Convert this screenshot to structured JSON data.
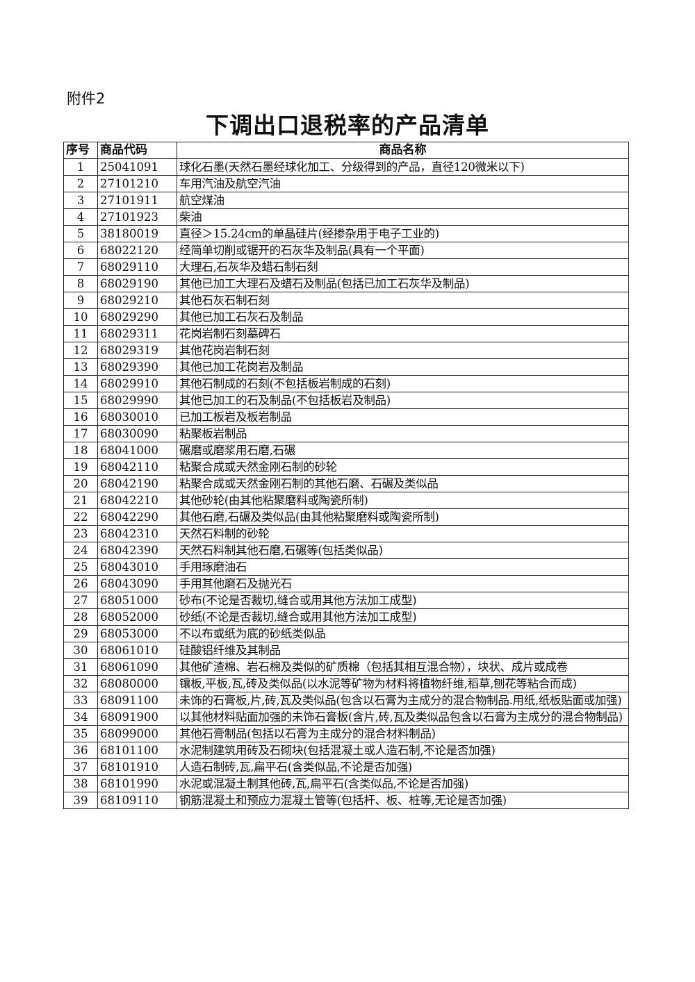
{
  "attachment_label": "附件2",
  "title": "下调出口退税率的产品清单",
  "table": {
    "headers": [
      "序号",
      "商品代码",
      "商品名称"
    ],
    "rows": [
      [
        "1",
        "25041091",
        "球化石墨(天然石墨经球化加工、分级得到的产品，直径120微米以下)"
      ],
      [
        "2",
        "27101210",
        "车用汽油及航空汽油"
      ],
      [
        "3",
        "27101911",
        "航空煤油"
      ],
      [
        "4",
        "27101923",
        "柴油"
      ],
      [
        "5",
        "38180019",
        "直径＞15.24cm的单晶硅片(经掺杂用于电子工业的)"
      ],
      [
        "6",
        "68022120",
        "经简单切削或锯开的石灰华及制品(具有一个平面)"
      ],
      [
        "7",
        "68029110",
        "大理石,石灰华及蜡石制石刻"
      ],
      [
        "8",
        "68029190",
        "其他已加工大理石及蜡石及制品(包括已加工石灰华及制品)"
      ],
      [
        "9",
        "68029210",
        "其他石灰石制石刻"
      ],
      [
        "10",
        "68029290",
        "其他已加工石灰石及制品"
      ],
      [
        "11",
        "68029311",
        "花岗岩制石刻墓碑石"
      ],
      [
        "12",
        "68029319",
        "其他花岗岩制石刻"
      ],
      [
        "13",
        "68029390",
        "其他已加工花岗岩及制品"
      ],
      [
        "14",
        "68029910",
        "其他石制成的石刻(不包括板岩制成的石刻)"
      ],
      [
        "15",
        "68029990",
        "其他已加工的石及制品(不包括板岩及制品)"
      ],
      [
        "16",
        "68030010",
        "已加工板岩及板岩制品"
      ],
      [
        "17",
        "68030090",
        "粘聚板岩制品"
      ],
      [
        "18",
        "68041000",
        "碾磨或磨浆用石磨,石碾"
      ],
      [
        "19",
        "68042110",
        "粘聚合成或天然金刚石制的砂轮"
      ],
      [
        "20",
        "68042190",
        "粘聚合成或天然金刚石制的其他石磨、石碾及类似品"
      ],
      [
        "21",
        "68042210",
        "其他砂轮(由其他粘聚磨料或陶瓷所制)"
      ],
      [
        "22",
        "68042290",
        "其他石磨,石碾及类似品(由其他粘聚磨料或陶瓷所制)"
      ],
      [
        "23",
        "68042310",
        "天然石料制的砂轮"
      ],
      [
        "24",
        "68042390",
        "天然石料制其他石磨,石碾等(包括类似品)"
      ],
      [
        "25",
        "68043010",
        "手用琢磨油石"
      ],
      [
        "26",
        "68043090",
        "手用其他磨石及抛光石"
      ],
      [
        "27",
        "68051000",
        "砂布(不论是否裁切,缝合或用其他方法加工成型)"
      ],
      [
        "28",
        "68052000",
        "砂纸(不论是否裁切,缝合或用其他方法加工成型)"
      ],
      [
        "29",
        "68053000",
        "不以布或纸为底的砂纸类似品"
      ],
      [
        "30",
        "68061010",
        "硅酸铝纤维及其制品"
      ],
      [
        "31",
        "68061090",
        "其他矿渣棉、岩石棉及类似的矿质棉（包括其相互混合物），块状、成片或成卷"
      ],
      [
        "32",
        "68080000",
        "镶板,平板,瓦,砖及类似品(以水泥等矿物为材料将植物纤维,稻草,刨花等粘合而成)"
      ],
      [
        "33",
        "68091100",
        "未饰的石膏板,片,砖,瓦及类似品(包含以石膏为主成分的混合物制品.用纸,纸板贴面或加强)"
      ],
      [
        "34",
        "68091900",
        "以其他材料贴面加强的未饰石膏板(含片,砖,瓦及类似品包含以石膏为主成分的混合物制品)"
      ],
      [
        "35",
        "68099000",
        "其他石膏制品(包括以石膏为主成分的混合材料制品)"
      ],
      [
        "36",
        "68101100",
        "水泥制建筑用砖及石砌块(包括混凝土或人造石制,不论是否加强)"
      ],
      [
        "37",
        "68101910",
        "人造石制砖,瓦,扁平石(含类似品,不论是否加强)"
      ],
      [
        "38",
        "68101990",
        "水泥或混凝土制其他砖,瓦,扁平石(含类似品,不论是否加强)"
      ],
      [
        "39",
        "68109110",
        "钢筋混凝土和预应力混凝土管等(包括杆、板、桩等,无论是否加强)"
      ]
    ]
  }
}
